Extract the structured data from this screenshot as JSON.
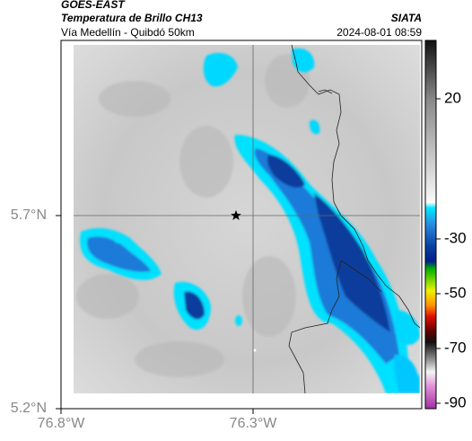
{
  "header": {
    "source": "GOES-EAST",
    "title": "Temperatura de Brillo CH13",
    "subtitle": "Vía Medellín - Quibdó 50km",
    "agency": "SIATA",
    "timestamp": "2024-08-01 08:59"
  },
  "map": {
    "lat_labels": [
      "5.7°N",
      "5.2°N"
    ],
    "lon_labels": [
      "76.8°W",
      "76.3°W"
    ]
  },
  "colorbar": {
    "labels": [
      "20",
      "-30",
      "-50",
      "-70",
      "-90"
    ]
  }
}
